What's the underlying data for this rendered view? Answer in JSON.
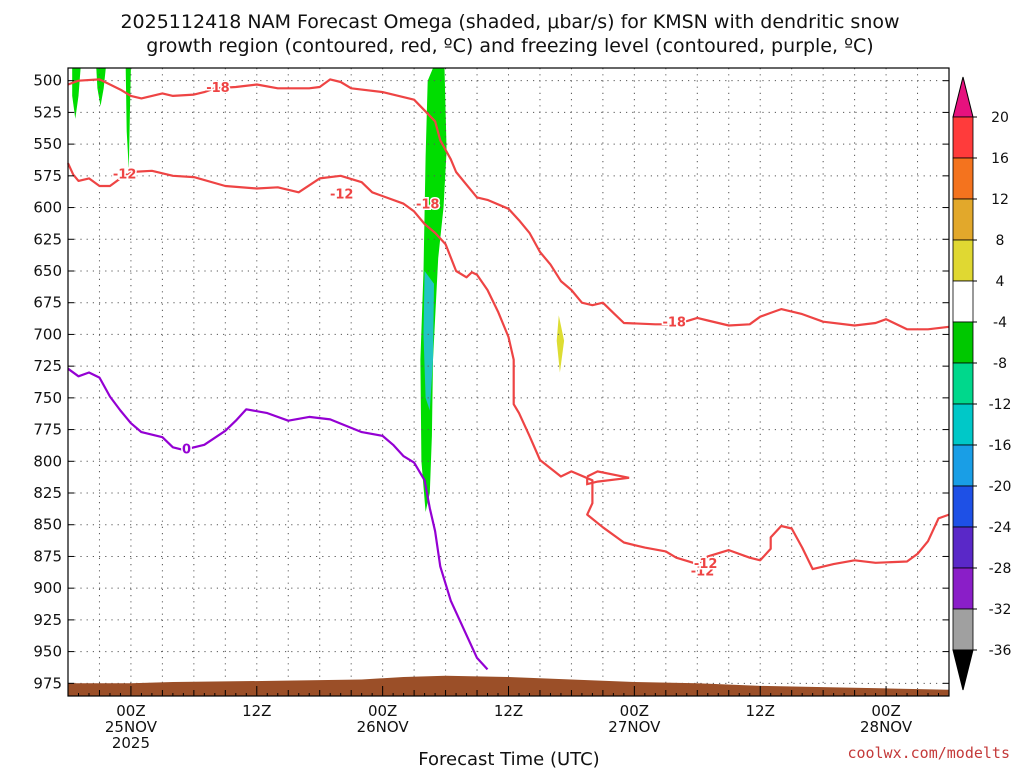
{
  "header": {
    "title_line1": "2025112418 NAM Forecast Omega (shaded, μbar/s) for KMSN with dendritic snow",
    "title_line2": "growth region (contoured, red, ºC) and freezing level (contoured, purple, ºC)"
  },
  "footer": {
    "xlabel": "Forecast Time (UTC)",
    "credit": "coolwx.com/modelts"
  },
  "colors": {
    "dgz_contour": "#ee4444",
    "freezing_contour": "#9400d3",
    "omega_weak": "#00dd00",
    "omega_moderate": "#22cc88",
    "omega_strong": "#22c4c4",
    "omega_positive": "#dddd33",
    "terrain": "#9b4f28",
    "grid": "#555555"
  },
  "chart_data": {
    "type": "line",
    "x_range_hours": [
      0,
      84
    ],
    "y_scale": "pressure (mb), reversed",
    "ylim": [
      490,
      985
    ],
    "grid": true,
    "y_ticks": [
      500,
      525,
      550,
      575,
      600,
      625,
      650,
      675,
      700,
      725,
      750,
      775,
      800,
      825,
      850,
      875,
      900,
      925,
      950,
      975
    ],
    "x_ticks": [
      {
        "hour": 6,
        "label": "00Z",
        "sub1": "25NOV",
        "sub2": "2025"
      },
      {
        "hour": 18,
        "label": "12Z",
        "sub1": "",
        "sub2": ""
      },
      {
        "hour": 30,
        "label": "00Z",
        "sub1": "26NOV",
        "sub2": ""
      },
      {
        "hour": 42,
        "label": "12Z",
        "sub1": "",
        "sub2": ""
      },
      {
        "hour": 54,
        "label": "00Z",
        "sub1": "27NOV",
        "sub2": ""
      },
      {
        "hour": 66,
        "label": "12Z",
        "sub1": "",
        "sub2": ""
      },
      {
        "hour": 78,
        "label": "00Z",
        "sub1": "28NOV",
        "sub2": ""
      }
    ],
    "colorbar": {
      "labels": [
        "20",
        "16",
        "12",
        "8",
        "4",
        "-4",
        "-8",
        "-12",
        "-16",
        "-20",
        "-24",
        "-28",
        "-32",
        "-36"
      ],
      "bands": [
        "#ff3b3b",
        "#f4731e",
        "#e2a82b",
        "#e0d832",
        "#ffffff",
        "#00c800",
        "#00d88c",
        "#00c8c8",
        "#199ee6",
        "#1e50e6",
        "#5a28c8",
        "#8a1ec8",
        "#a0a0a0"
      ],
      "top_arrow": "#e6117e",
      "bottom_arrow": "#000000"
    },
    "series": [
      {
        "name": "-18",
        "kind": "dgz",
        "points": [
          [
            0,
            503
          ],
          [
            1,
            500
          ],
          [
            3,
            499
          ],
          [
            4,
            503
          ],
          [
            5,
            507
          ],
          [
            6,
            512
          ],
          [
            7,
            514
          ],
          [
            9,
            510
          ],
          [
            10,
            512
          ],
          [
            12,
            511
          ],
          [
            13,
            509
          ],
          [
            14,
            506
          ],
          [
            16,
            505
          ],
          [
            18,
            503
          ],
          [
            20,
            506
          ],
          [
            23,
            506
          ],
          [
            24,
            505
          ],
          [
            25,
            499
          ],
          [
            26,
            501
          ],
          [
            27,
            506
          ],
          [
            30,
            509
          ],
          [
            33,
            515
          ],
          [
            35,
            532
          ],
          [
            35.5,
            547
          ],
          [
            36.5,
            562
          ],
          [
            37,
            572
          ],
          [
            38,
            582
          ],
          [
            39,
            592
          ],
          [
            40,
            594
          ],
          [
            42,
            601
          ],
          [
            43,
            610
          ],
          [
            44,
            620
          ],
          [
            45,
            635
          ],
          [
            46,
            645
          ],
          [
            47,
            658
          ],
          [
            48,
            665
          ],
          [
            49,
            675
          ],
          [
            50,
            677
          ],
          [
            51,
            675
          ],
          [
            52,
            683
          ],
          [
            53,
            691
          ],
          [
            56,
            692
          ],
          [
            58,
            692
          ],
          [
            60,
            687
          ],
          [
            61,
            689
          ],
          [
            63,
            693
          ],
          [
            65,
            692
          ],
          [
            66,
            686
          ],
          [
            67,
            683
          ],
          [
            68,
            680
          ],
          [
            70,
            684
          ],
          [
            72,
            690
          ],
          [
            75,
            693
          ],
          [
            77,
            691
          ],
          [
            78,
            688
          ],
          [
            80,
            696
          ],
          [
            82,
            696
          ],
          [
            84,
            694
          ]
        ]
      },
      {
        "name": "-12",
        "kind": "dgz",
        "points": [
          [
            0,
            565
          ],
          [
            0.5,
            574
          ],
          [
            1,
            579
          ],
          [
            2,
            577
          ],
          [
            3,
            583
          ],
          [
            4,
            583
          ],
          [
            5,
            577
          ],
          [
            6,
            572
          ],
          [
            8,
            571
          ],
          [
            10,
            575
          ],
          [
            12,
            576
          ],
          [
            15,
            583
          ],
          [
            18,
            585
          ],
          [
            20,
            584
          ],
          [
            22,
            588
          ],
          [
            24,
            577
          ],
          [
            26,
            575
          ],
          [
            28,
            580
          ],
          [
            29,
            588
          ],
          [
            32,
            597
          ],
          [
            33,
            603
          ],
          [
            34,
            613
          ],
          [
            35,
            620
          ],
          [
            36,
            629
          ],
          [
            37,
            650
          ],
          [
            38,
            655
          ],
          [
            38.5,
            651
          ],
          [
            39,
            653
          ],
          [
            40,
            665
          ],
          [
            41,
            682
          ],
          [
            42,
            702
          ],
          [
            42.5,
            720
          ],
          [
            42.5,
            755
          ],
          [
            43,
            762
          ],
          [
            44,
            780
          ],
          [
            45,
            799
          ],
          [
            47,
            812
          ],
          [
            48,
            808
          ],
          [
            50,
            815
          ],
          [
            50,
            833
          ],
          [
            49.5,
            842
          ],
          [
            51,
            852
          ],
          [
            53,
            864
          ],
          [
            55,
            868
          ],
          [
            57,
            871
          ],
          [
            58,
            876
          ],
          [
            60,
            881
          ],
          [
            61,
            875
          ],
          [
            63,
            870
          ],
          [
            65,
            876
          ],
          [
            66,
            878
          ],
          [
            67,
            869
          ],
          [
            67,
            860
          ],
          [
            68,
            851
          ],
          [
            69,
            853
          ],
          [
            70,
            868
          ],
          [
            71,
            885
          ],
          [
            73,
            881
          ],
          [
            75,
            878
          ],
          [
            77,
            880
          ],
          [
            80,
            879
          ],
          [
            81,
            873
          ],
          [
            82,
            863
          ],
          [
            83,
            845
          ],
          [
            84,
            842
          ]
        ]
      },
      {
        "name": "0",
        "kind": "freezing",
        "points": [
          [
            0,
            727
          ],
          [
            1,
            733
          ],
          [
            2,
            730
          ],
          [
            3,
            734
          ],
          [
            4,
            749
          ],
          [
            5,
            760
          ],
          [
            6,
            770
          ],
          [
            7,
            777
          ],
          [
            9,
            781
          ],
          [
            10,
            789
          ],
          [
            11,
            791
          ],
          [
            13,
            787
          ],
          [
            15,
            776
          ],
          [
            16,
            768
          ],
          [
            17,
            759
          ],
          [
            19,
            762
          ],
          [
            21,
            768
          ],
          [
            23,
            765
          ],
          [
            25,
            767
          ],
          [
            28,
            777
          ],
          [
            30,
            780
          ],
          [
            31,
            787
          ],
          [
            32,
            796
          ],
          [
            33,
            801
          ],
          [
            34,
            815
          ],
          [
            34.5,
            837
          ],
          [
            35,
            855
          ],
          [
            35.5,
            883
          ],
          [
            36.5,
            910
          ],
          [
            38,
            937
          ],
          [
            39,
            955
          ],
          [
            40,
            964
          ]
        ]
      }
    ],
    "contour_labels": [
      {
        "text": "-18",
        "x": 14.3,
        "y": 505,
        "kind": "dgz"
      },
      {
        "text": "-12",
        "x": 5.4,
        "y": 573,
        "kind": "dgz"
      },
      {
        "text": "-12",
        "x": 26.1,
        "y": 589,
        "kind": "dgz"
      },
      {
        "text": "-18",
        "x": 34.3,
        "y": 597,
        "kind": "dgz"
      },
      {
        "text": "-18",
        "x": 57.8,
        "y": 690,
        "kind": "dgz"
      },
      {
        "text": "-12",
        "x": 60.5,
        "y": 886,
        "kind": "dgz"
      },
      {
        "text": "-12",
        "x": 60.8,
        "y": 880,
        "kind": "dgz"
      },
      {
        "text": "0",
        "x": 11.3,
        "y": 790,
        "kind": "freezing"
      }
    ],
    "closed_contours": [
      {
        "kind": "dgz",
        "points": [
          [
            49.5,
            812
          ],
          [
            50.5,
            808
          ],
          [
            53.5,
            813
          ],
          [
            50.5,
            816
          ],
          [
            49.5,
            818
          ],
          [
            49.5,
            812
          ]
        ]
      }
    ],
    "omega_areas": [
      {
        "level": "weak",
        "points": [
          [
            0.4,
            490
          ],
          [
            1.2,
            490
          ],
          [
            1.0,
            512
          ],
          [
            0.7,
            530
          ],
          [
            0.4,
            512
          ]
        ]
      },
      {
        "level": "weak",
        "points": [
          [
            2.7,
            490
          ],
          [
            3.6,
            490
          ],
          [
            3.4,
            506
          ],
          [
            3.1,
            520
          ],
          [
            2.8,
            506
          ]
        ]
      },
      {
        "level": "weak",
        "points": [
          [
            5.5,
            490
          ],
          [
            6.0,
            490
          ],
          [
            5.9,
            525
          ],
          [
            5.8,
            570
          ],
          [
            5.6,
            540
          ]
        ]
      },
      {
        "level": "weak",
        "points": [
          [
            34.8,
            490
          ],
          [
            35.9,
            490
          ],
          [
            36.1,
            555
          ],
          [
            35.8,
            600
          ],
          [
            35.3,
            640
          ],
          [
            34.8,
            720
          ],
          [
            34.7,
            780
          ],
          [
            34.5,
            825
          ],
          [
            34.1,
            840
          ],
          [
            33.7,
            800
          ],
          [
            33.6,
            720
          ],
          [
            33.9,
            650
          ],
          [
            34.1,
            560
          ],
          [
            34.3,
            500
          ]
        ]
      },
      {
        "level": "strong",
        "points": [
          [
            34.0,
            650
          ],
          [
            34.9,
            660
          ],
          [
            34.8,
            720
          ],
          [
            34.5,
            760
          ],
          [
            34.1,
            750
          ],
          [
            33.9,
            700
          ]
        ]
      },
      {
        "level": "positive",
        "points": [
          [
            46.8,
            685
          ],
          [
            47.3,
            705
          ],
          [
            46.9,
            730
          ],
          [
            46.6,
            705
          ]
        ]
      }
    ],
    "terrain": [
      [
        0,
        975
      ],
      [
        6,
        975
      ],
      [
        10,
        974
      ],
      [
        20,
        973
      ],
      [
        28,
        972
      ],
      [
        32,
        970
      ],
      [
        36,
        969
      ],
      [
        42,
        970
      ],
      [
        48,
        972
      ],
      [
        54,
        974
      ],
      [
        60,
        975
      ],
      [
        66,
        977
      ],
      [
        72,
        978
      ],
      [
        78,
        979
      ],
      [
        84,
        980
      ]
    ]
  }
}
